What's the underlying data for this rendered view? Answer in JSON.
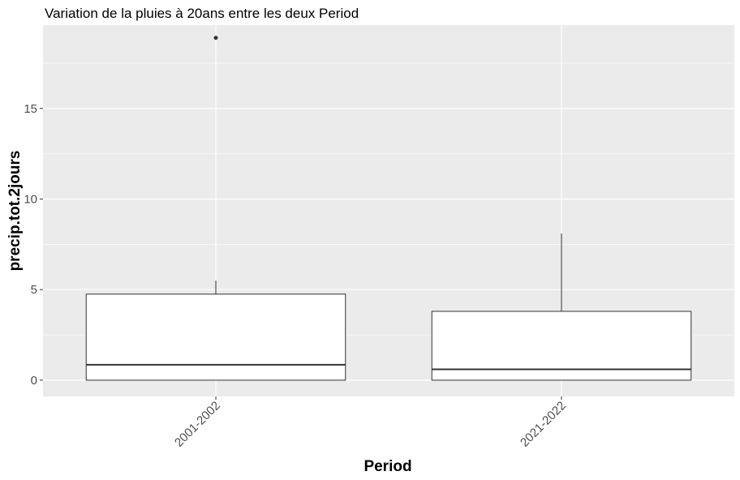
{
  "chart_data": {
    "type": "boxplot",
    "title": "Variation  de la pluies à 20ans entre les deux Period",
    "xlabel": "Period",
    "ylabel": "precip.tot.2jours",
    "categories": [
      "2001-2002",
      "2021-2022"
    ],
    "ylim": [
      -0.9,
      19.6
    ],
    "yticks": [
      0,
      5,
      10,
      15
    ],
    "ytick_labels": [
      "0",
      "5",
      "10",
      "15"
    ],
    "grid": true,
    "panel_background": "#ebebeb",
    "box_fill": "#ffffff",
    "box_stroke": "#333333",
    "series": [
      {
        "category": "2001-2002",
        "min": 0,
        "q1": 0,
        "median": 0.85,
        "q3": 4.75,
        "whisker_high": 5.5,
        "outliers": [
          18.9
        ]
      },
      {
        "category": "2021-2022",
        "min": 0,
        "q1": 0,
        "median": 0.6,
        "q3": 3.8,
        "whisker_high": 8.1,
        "outliers": []
      }
    ]
  }
}
